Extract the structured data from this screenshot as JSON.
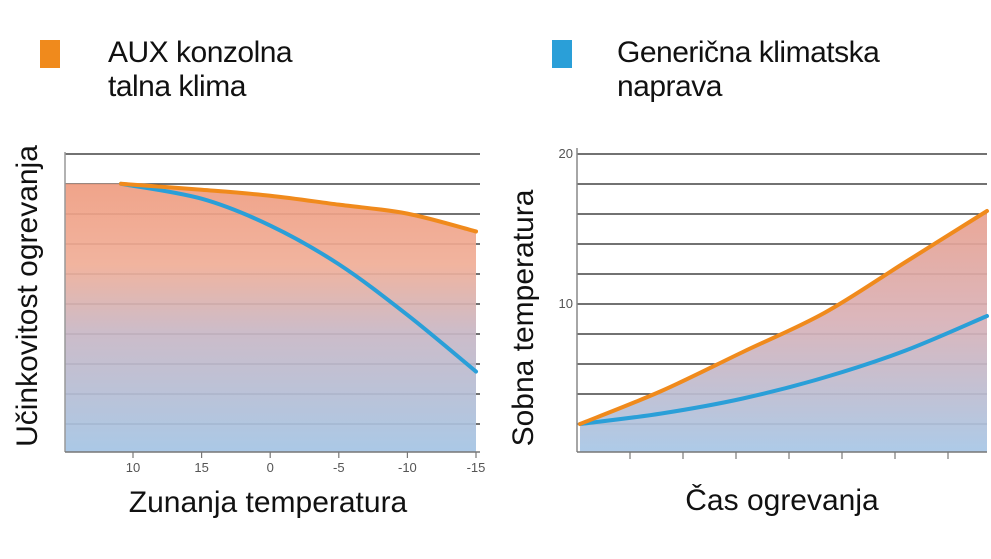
{
  "legend": {
    "aux": {
      "line1": "AUX konzolna",
      "line2": "talna klima",
      "color": "#f08a1c"
    },
    "generic": {
      "line1": "Generična klimatska",
      "line2": "naprava",
      "color": "#2a9fd8"
    }
  },
  "chart_data": [
    {
      "type": "line",
      "title": "",
      "xlabel": "Zunanja temperatura",
      "ylabel": "Učinkovitost ogrevanja",
      "x_ticks": [
        "10",
        "15",
        "0",
        "-5",
        "-10",
        "-15"
      ],
      "ylim": [
        0,
        100
      ],
      "series": [
        {
          "name": "AUX konzolna talna klima",
          "color": "#f08a1c",
          "x_pos": [
            0,
            1,
            2,
            3,
            4,
            5
          ],
          "values": [
            90,
            88,
            86,
            83,
            80,
            74
          ]
        },
        {
          "name": "Generična klimatska naprava",
          "color": "#2a9fd8",
          "x_pos": [
            0,
            1,
            2,
            3,
            4,
            5
          ],
          "values": [
            90,
            85,
            76,
            63,
            46,
            27
          ]
        }
      ]
    },
    {
      "type": "line",
      "title": "",
      "xlabel": "Čas ogrevanja",
      "ylabel": "Sobna temperatura",
      "y_ticks": [
        "20",
        "10"
      ],
      "ylim": [
        0,
        20
      ],
      "series": [
        {
          "name": "AUX konzolna talna klima",
          "color": "#f08a1c",
          "t": [
            0,
            0.2,
            0.4,
            0.6,
            0.8,
            1.0
          ],
          "values": [
            2,
            4.2,
            6.8,
            9.4,
            12.8,
            16.2
          ]
        },
        {
          "name": "Generična klimatska naprava",
          "color": "#2a9fd8",
          "t": [
            0,
            0.2,
            0.4,
            0.6,
            0.8,
            1.0
          ],
          "values": [
            2,
            2.7,
            3.7,
            5.1,
            6.9,
            9.2
          ]
        }
      ]
    }
  ]
}
